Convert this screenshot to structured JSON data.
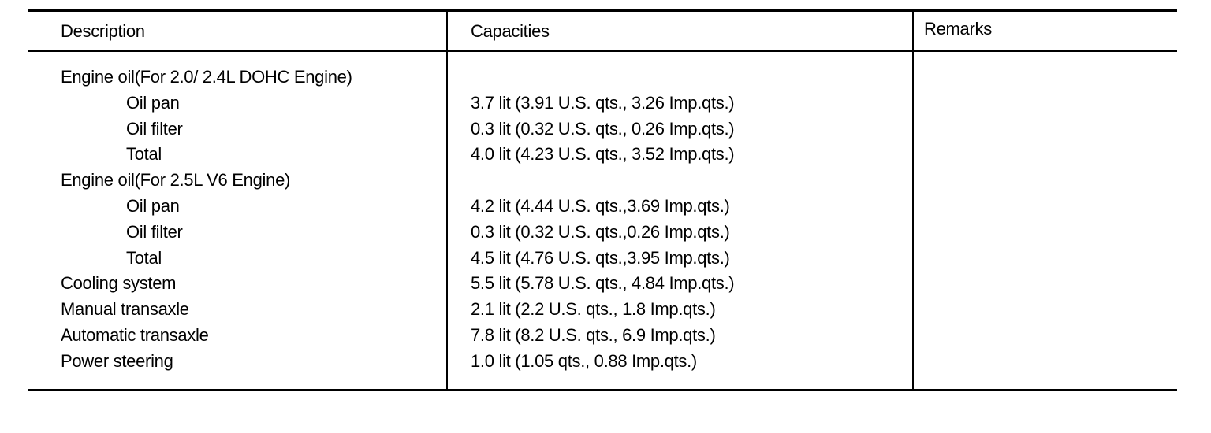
{
  "headers": {
    "description": "Description",
    "capacities": "Capacities",
    "remarks": "Remarks"
  },
  "rows": [
    {
      "description": "Engine oil(For 2.0/ 2.4L DOHC Engine)",
      "indent": false,
      "capacity": ""
    },
    {
      "description": "Oil pan",
      "indent": true,
      "capacity": "3.7 lit (3.91 U.S. qts., 3.26 Imp.qts.)"
    },
    {
      "description": "Oil filter",
      "indent": true,
      "capacity": "0.3 lit (0.32 U.S. qts., 0.26 Imp.qts.)"
    },
    {
      "description": "Total",
      "indent": true,
      "capacity": "4.0 lit (4.23 U.S. qts., 3.52 Imp.qts.)"
    },
    {
      "description": "Engine oil(For 2.5L V6 Engine)",
      "indent": false,
      "capacity": ""
    },
    {
      "description": "Oil pan",
      "indent": true,
      "capacity": "4.2 lit (4.44 U.S. qts.,3.69 Imp.qts.)"
    },
    {
      "description": "Oil filter",
      "indent": true,
      "capacity": "0.3 lit (0.32 U.S. qts.,0.26 Imp.qts.)"
    },
    {
      "description": "Total",
      "indent": true,
      "capacity": "4.5 lit (4.76 U.S. qts.,3.95 Imp.qts.)"
    },
    {
      "description": "Cooling system",
      "indent": false,
      "capacity": "5.5 lit (5.78 U.S. qts., 4.84 Imp.qts.)"
    },
    {
      "description": "Manual transaxle",
      "indent": false,
      "capacity": "2.1 lit (2.2 U.S. qts., 1.8 Imp.qts.)"
    },
    {
      "description": "Automatic transaxle",
      "indent": false,
      "capacity": "7.8 lit (8.2 U.S. qts., 6.9 Imp.qts.)"
    },
    {
      "description": "Power steering",
      "indent": false,
      "capacity": "1.0 lit (1.05 qts., 0.88 Imp.qts.)"
    }
  ]
}
